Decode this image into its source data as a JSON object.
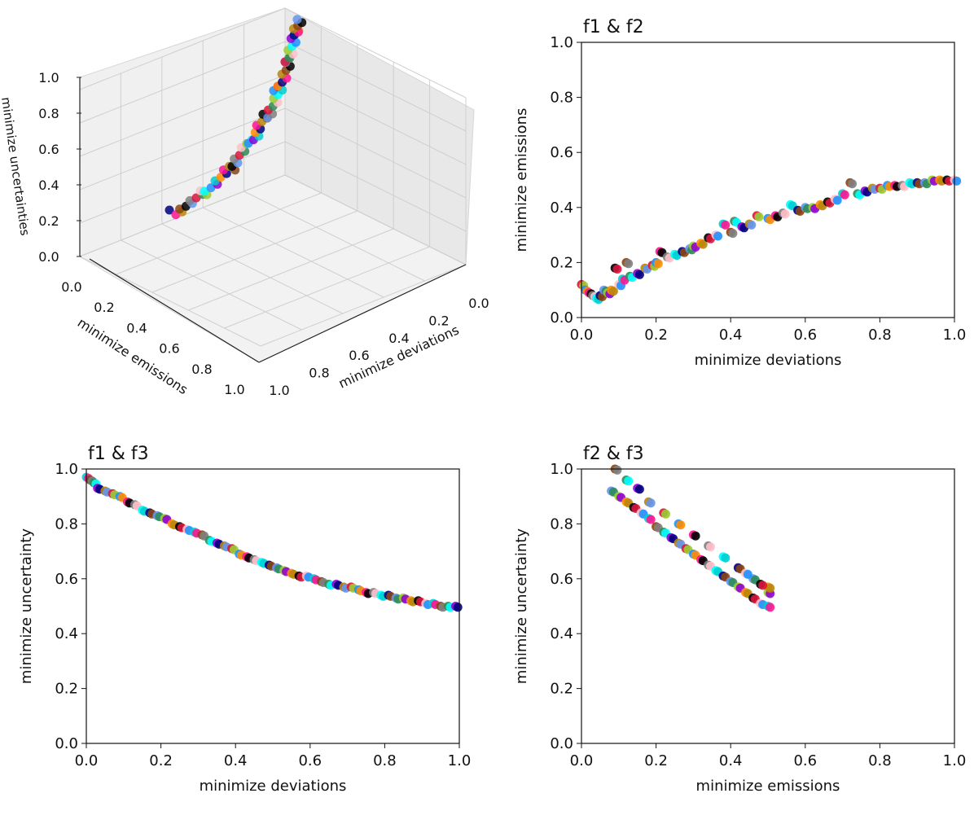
{
  "chart_data": [
    {
      "id": "p3d",
      "type": "scatter3d",
      "title": "",
      "xlabel": "minimize deviations",
      "ylabel": "minimize emissions",
      "zlabel": "minimize uncertainties",
      "xlim": [
        0,
        1
      ],
      "ylim": [
        0,
        1
      ],
      "zlim": [
        0,
        1
      ],
      "ticks": [
        0.0,
        0.2,
        0.4,
        0.6,
        0.8,
        1.0
      ],
      "tick_labels": [
        "0.0",
        "0.2",
        "0.4",
        "0.6",
        "0.8",
        "1.0"
      ],
      "grid": true,
      "curve": {
        "description": "pareto front points (deviation, emission, uncertainty)",
        "points": [
          [
            0.0,
            0.1,
            0.97
          ],
          [
            0.1,
            0.15,
            0.9
          ],
          [
            0.2,
            0.22,
            0.82
          ],
          [
            0.3,
            0.28,
            0.75
          ],
          [
            0.4,
            0.33,
            0.68
          ],
          [
            0.5,
            0.37,
            0.63
          ],
          [
            0.6,
            0.41,
            0.58
          ],
          [
            0.7,
            0.44,
            0.55
          ],
          [
            0.8,
            0.47,
            0.52
          ],
          [
            0.9,
            0.49,
            0.5
          ],
          [
            1.0,
            0.5,
            0.5
          ]
        ]
      }
    },
    {
      "id": "f12",
      "type": "scatter",
      "title": "f1 & f2",
      "xlabel": "minimize deviations",
      "ylabel": "minimize emissions",
      "xlim": [
        0,
        1
      ],
      "ylim": [
        0,
        1
      ],
      "ticks": [
        0.0,
        0.2,
        0.4,
        0.6,
        0.8,
        1.0
      ],
      "tick_labels": [
        "0.0",
        "0.2",
        "0.4",
        "0.6",
        "0.8",
        "1.0"
      ],
      "points": [
        [
          0.0,
          0.12
        ],
        [
          0.01,
          0.1
        ],
        [
          0.02,
          0.09
        ],
        [
          0.03,
          0.08
        ],
        [
          0.04,
          0.07
        ],
        [
          0.05,
          0.08
        ],
        [
          0.06,
          0.1
        ],
        [
          0.07,
          0.09
        ],
        [
          0.08,
          0.1
        ],
        [
          0.09,
          0.18
        ],
        [
          0.1,
          0.12
        ],
        [
          0.11,
          0.14
        ],
        [
          0.12,
          0.2
        ],
        [
          0.13,
          0.15
        ],
        [
          0.15,
          0.16
        ],
        [
          0.17,
          0.18
        ],
        [
          0.19,
          0.19
        ],
        [
          0.2,
          0.2
        ],
        [
          0.21,
          0.24
        ],
        [
          0.23,
          0.22
        ],
        [
          0.25,
          0.23
        ],
        [
          0.27,
          0.24
        ],
        [
          0.29,
          0.25
        ],
        [
          0.3,
          0.26
        ],
        [
          0.32,
          0.27
        ],
        [
          0.34,
          0.29
        ],
        [
          0.36,
          0.3
        ],
        [
          0.38,
          0.34
        ],
        [
          0.4,
          0.31
        ],
        [
          0.41,
          0.35
        ],
        [
          0.43,
          0.33
        ],
        [
          0.45,
          0.34
        ],
        [
          0.47,
          0.37
        ],
        [
          0.5,
          0.36
        ],
        [
          0.52,
          0.37
        ],
        [
          0.54,
          0.38
        ],
        [
          0.56,
          0.41
        ],
        [
          0.58,
          0.39
        ],
        [
          0.6,
          0.4
        ],
        [
          0.62,
          0.4
        ],
        [
          0.64,
          0.41
        ],
        [
          0.66,
          0.42
        ],
        [
          0.68,
          0.43
        ],
        [
          0.7,
          0.45
        ],
        [
          0.72,
          0.49
        ],
        [
          0.74,
          0.45
        ],
        [
          0.76,
          0.46
        ],
        [
          0.78,
          0.47
        ],
        [
          0.8,
          0.47
        ],
        [
          0.82,
          0.48
        ],
        [
          0.84,
          0.48
        ],
        [
          0.86,
          0.48
        ],
        [
          0.88,
          0.49
        ],
        [
          0.9,
          0.49
        ],
        [
          0.92,
          0.49
        ],
        [
          0.94,
          0.5
        ],
        [
          0.96,
          0.5
        ],
        [
          0.98,
          0.5
        ],
        [
          1.0,
          0.5
        ]
      ]
    },
    {
      "id": "f13",
      "type": "scatter",
      "title": "f1 & f3",
      "xlabel": "minimize deviations",
      "ylabel": "minimize uncertainty",
      "xlim": [
        0,
        1
      ],
      "ylim": [
        0,
        1
      ],
      "ticks": [
        0.0,
        0.2,
        0.4,
        0.6,
        0.8,
        1.0
      ],
      "tick_labels": [
        "0.0",
        "0.2",
        "0.4",
        "0.6",
        "0.8",
        "1.0"
      ],
      "points": [
        [
          0.0,
          0.97
        ],
        [
          0.01,
          0.96
        ],
        [
          0.02,
          0.95
        ],
        [
          0.03,
          0.93
        ],
        [
          0.05,
          0.92
        ],
        [
          0.07,
          0.91
        ],
        [
          0.09,
          0.9
        ],
        [
          0.11,
          0.88
        ],
        [
          0.13,
          0.87
        ],
        [
          0.15,
          0.85
        ],
        [
          0.17,
          0.84
        ],
        [
          0.19,
          0.83
        ],
        [
          0.21,
          0.82
        ],
        [
          0.23,
          0.8
        ],
        [
          0.25,
          0.79
        ],
        [
          0.27,
          0.78
        ],
        [
          0.29,
          0.77
        ],
        [
          0.31,
          0.76
        ],
        [
          0.33,
          0.74
        ],
        [
          0.35,
          0.73
        ],
        [
          0.37,
          0.72
        ],
        [
          0.39,
          0.71
        ],
        [
          0.41,
          0.69
        ],
        [
          0.43,
          0.68
        ],
        [
          0.45,
          0.67
        ],
        [
          0.47,
          0.66
        ],
        [
          0.49,
          0.65
        ],
        [
          0.51,
          0.64
        ],
        [
          0.53,
          0.63
        ],
        [
          0.55,
          0.62
        ],
        [
          0.57,
          0.61
        ],
        [
          0.59,
          0.61
        ],
        [
          0.61,
          0.6
        ],
        [
          0.63,
          0.59
        ],
        [
          0.65,
          0.58
        ],
        [
          0.67,
          0.58
        ],
        [
          0.69,
          0.57
        ],
        [
          0.71,
          0.57
        ],
        [
          0.73,
          0.56
        ],
        [
          0.75,
          0.55
        ],
        [
          0.77,
          0.55
        ],
        [
          0.79,
          0.54
        ],
        [
          0.81,
          0.54
        ],
        [
          0.83,
          0.53
        ],
        [
          0.85,
          0.53
        ],
        [
          0.87,
          0.52
        ],
        [
          0.89,
          0.52
        ],
        [
          0.91,
          0.51
        ],
        [
          0.93,
          0.51
        ],
        [
          0.95,
          0.5
        ],
        [
          0.97,
          0.5
        ],
        [
          0.99,
          0.5
        ]
      ]
    },
    {
      "id": "f23",
      "type": "scatter",
      "title": "f2 & f3",
      "xlabel": "minimize emissions",
      "ylabel": "minimize uncertainty",
      "xlim": [
        0,
        1
      ],
      "ylim": [
        0,
        1
      ],
      "ticks": [
        0.0,
        0.2,
        0.4,
        0.6,
        0.8,
        1.0
      ],
      "tick_labels": [
        "0.0",
        "0.2",
        "0.4",
        "0.6",
        "0.8",
        "1.0"
      ],
      "points": [
        [
          0.08,
          0.92
        ],
        [
          0.1,
          0.9
        ],
        [
          0.12,
          0.88
        ],
        [
          0.14,
          0.86
        ],
        [
          0.16,
          0.84
        ],
        [
          0.18,
          0.82
        ],
        [
          0.2,
          0.79
        ],
        [
          0.22,
          0.77
        ],
        [
          0.24,
          0.75
        ],
        [
          0.26,
          0.73
        ],
        [
          0.28,
          0.71
        ],
        [
          0.3,
          0.69
        ],
        [
          0.32,
          0.67
        ],
        [
          0.34,
          0.65
        ],
        [
          0.36,
          0.63
        ],
        [
          0.38,
          0.61
        ],
        [
          0.4,
          0.59
        ],
        [
          0.42,
          0.57
        ],
        [
          0.44,
          0.55
        ],
        [
          0.46,
          0.53
        ],
        [
          0.48,
          0.51
        ],
        [
          0.5,
          0.5
        ],
        [
          0.09,
          1.0
        ],
        [
          0.12,
          0.96
        ],
        [
          0.15,
          0.93
        ],
        [
          0.18,
          0.88
        ],
        [
          0.22,
          0.84
        ],
        [
          0.26,
          0.8
        ],
        [
          0.3,
          0.76
        ],
        [
          0.34,
          0.72
        ],
        [
          0.38,
          0.68
        ],
        [
          0.42,
          0.64
        ],
        [
          0.46,
          0.6
        ],
        [
          0.5,
          0.55
        ],
        [
          0.5,
          0.57
        ],
        [
          0.48,
          0.58
        ],
        [
          0.44,
          0.62
        ]
      ]
    }
  ],
  "palette": [
    "#000080",
    "#dc143c",
    "#00ced1",
    "#6495ed",
    "#1e90ff",
    "#8b4513",
    "#9acd32",
    "#ff1493",
    "#2e8b57",
    "#ff8c00",
    "#808080",
    "#9400d3",
    "#000000",
    "#00ffff",
    "#b8860b",
    "#ffc0cb"
  ]
}
